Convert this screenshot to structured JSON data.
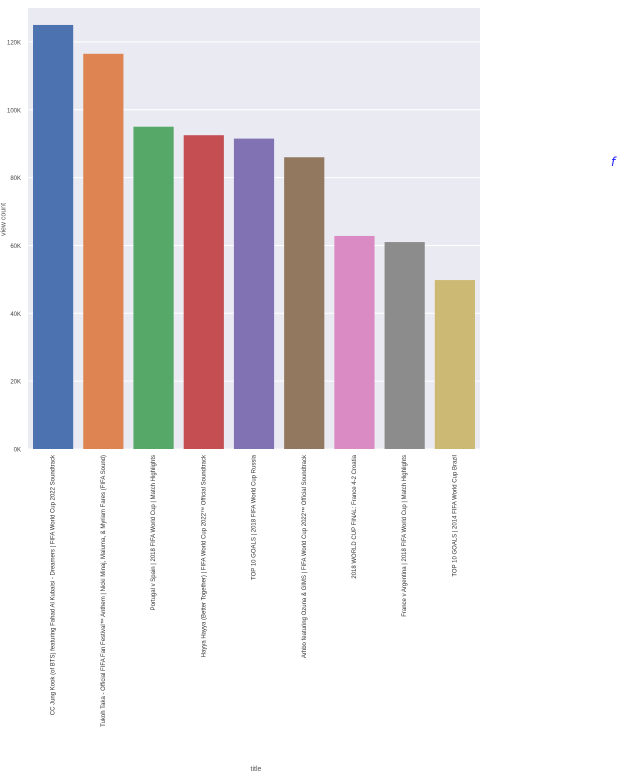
{
  "chart_data": {
    "type": "bar",
    "xlabel": "title",
    "ylabel": "view count",
    "ylim": [
      0,
      130000
    ],
    "yticks": [
      0,
      20000,
      40000,
      60000,
      80000,
      100000,
      120000
    ],
    "ytick_labels": [
      "0K",
      "20K",
      "40K",
      "60K",
      "80K",
      "100K",
      "120K"
    ],
    "categories": [
      "CC Jung Kook (of BTS) featuring Fahad Al Kubaisi - Dreamers | FIFA World Cup 2022 Soundtrack",
      "Tukoh Taka - Official FIFA Fan Festival™ Anthem | Nicki Minaj, Maluma, & Myriam Fares (FIFA Sound)",
      "Portugal v Spain | 2018 FIFA World Cup | Match Highlights",
      "Hayya Hayya (Better Together) | FIFA World Cup 2022™ Official Soundtrack",
      "TOP 10 GOALS | 2018 FIFA World Cup Russia",
      "Arhbo featuring Ozuna & GIMS | FIFA World Cup 2022™ Official Soundtrack",
      "2018 WORLD CUP FINAL: France 4-2 Croatia",
      "France v Argentina | 2018 FIFA World Cup | Match Highlights",
      "TOP 10 GOALS | 2014 FIFA World Cup Brazil"
    ],
    "values": [
      125000,
      116500,
      95000,
      92500,
      91500,
      86000,
      62800,
      61000,
      49800
    ],
    "colors": [
      "#4c72b0",
      "#dd8452",
      "#55a868",
      "#c44e52",
      "#8172b3",
      "#937860",
      "#da8bc3",
      "#8c8c8c",
      "#ccb974"
    ],
    "grid": true,
    "legend": "none"
  },
  "edge_mark": "f"
}
